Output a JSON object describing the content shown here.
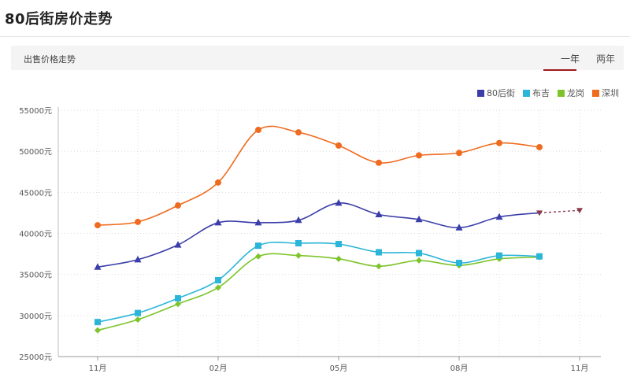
{
  "page": {
    "title": "80后街房价走势",
    "section_label": "出售价格走势",
    "tabs": [
      {
        "label": "一年",
        "active": true
      },
      {
        "label": "两年",
        "active": false
      }
    ]
  },
  "chart_data": {
    "type": "line",
    "title": "",
    "xlabel": "",
    "ylabel": "",
    "ylim": [
      25000,
      55000
    ],
    "yticks": [
      25000,
      30000,
      35000,
      40000,
      45000,
      50000,
      55000
    ],
    "ytick_labels": [
      "25000元",
      "30000元",
      "35000元",
      "40000元",
      "45000元",
      "50000元",
      "55000元"
    ],
    "x": [
      0,
      1,
      2,
      3,
      4,
      5,
      6,
      7,
      8,
      9,
      10,
      11,
      12
    ],
    "xtick_positions": [
      0,
      3,
      6,
      9,
      12
    ],
    "xtick_labels": [
      "11月",
      "02月",
      "05月",
      "08月",
      "11月"
    ],
    "grid": true,
    "legend_position": "top-right",
    "series": [
      {
        "name": "80后街",
        "color": "#3b3ea9",
        "marker": "triangle",
        "values": [
          35900,
          36800,
          38600,
          41300,
          41300,
          41600,
          43700,
          42300,
          41700,
          40700,
          42000,
          42500,
          null
        ],
        "forecast": [
          [
            11,
            42500
          ],
          [
            12,
            42800
          ]
        ],
        "forecast_color": "#8a3a4d"
      },
      {
        "name": "布吉",
        "color": "#2bb5d8",
        "marker": "square",
        "values": [
          29200,
          30300,
          32100,
          34300,
          38500,
          38800,
          38700,
          37700,
          37600,
          36400,
          37300,
          37200,
          null
        ]
      },
      {
        "name": "龙岗",
        "color": "#7dc42a",
        "marker": "diamond",
        "values": [
          28200,
          29500,
          31400,
          33400,
          37200,
          37300,
          36900,
          36000,
          36700,
          36100,
          36900,
          37100,
          null
        ]
      },
      {
        "name": "深圳",
        "color": "#ef6b1f",
        "marker": "circle",
        "values": [
          41000,
          41400,
          43400,
          46200,
          52600,
          52300,
          50700,
          48600,
          49500,
          49800,
          51000,
          50500,
          null
        ]
      }
    ]
  }
}
